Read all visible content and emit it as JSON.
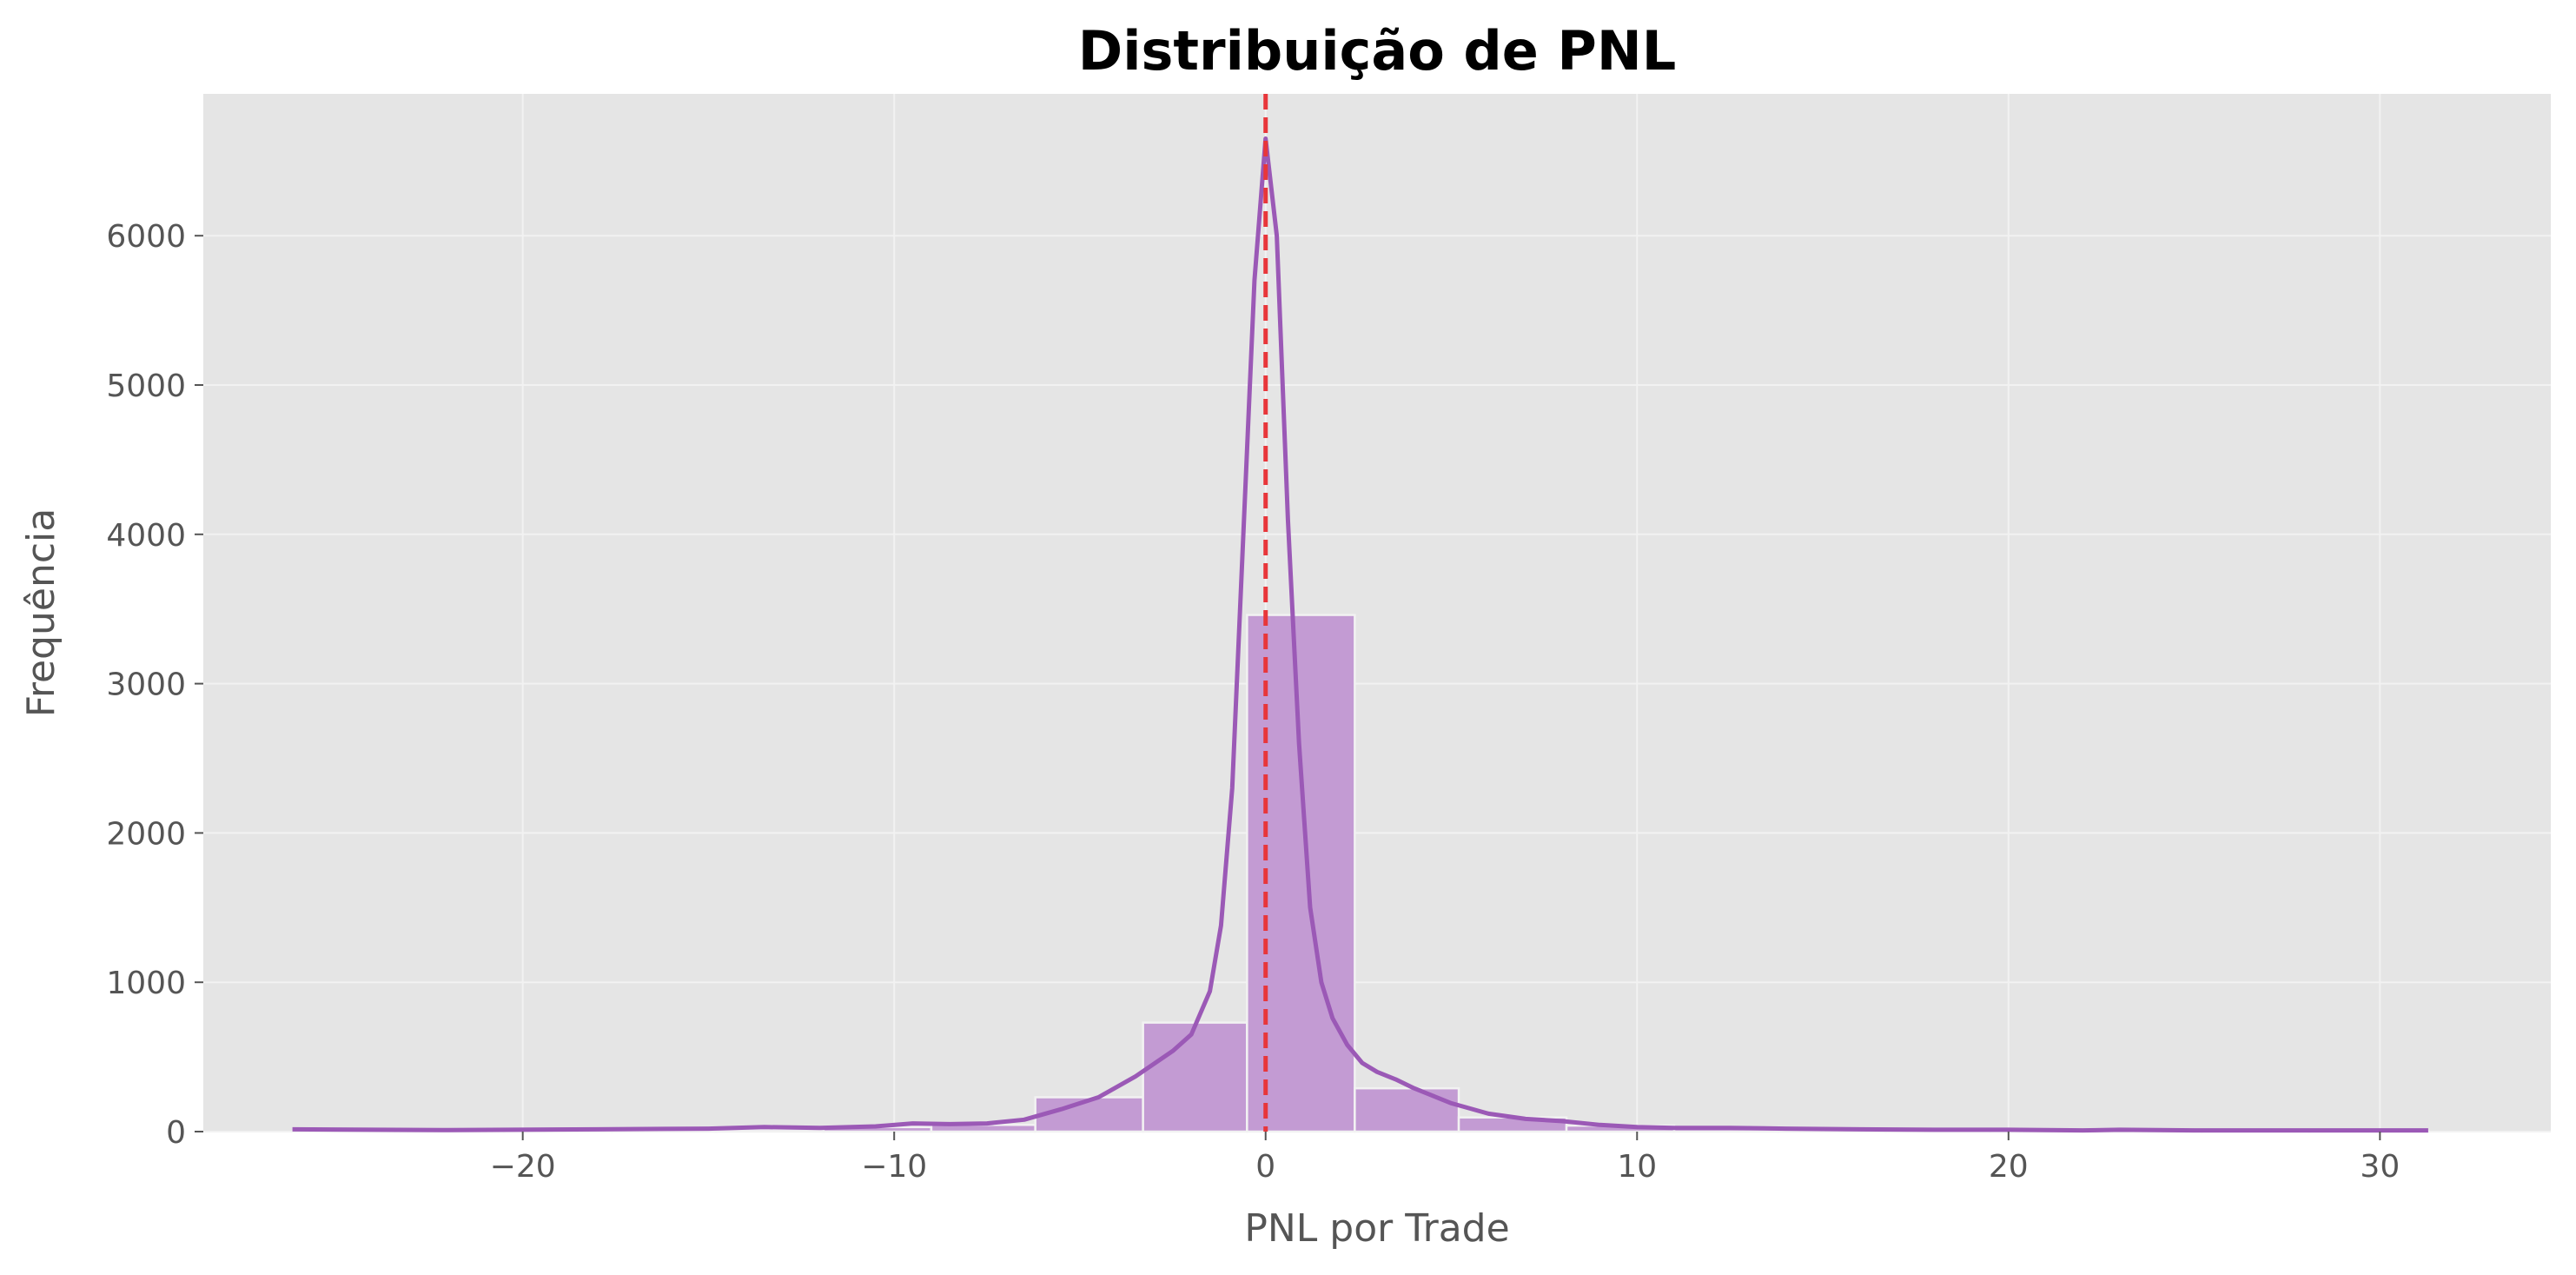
{
  "chart_data": {
    "type": "bar",
    "title": "Distribuição de PNL",
    "xlabel": "PNL por Trade",
    "ylabel": "Frequência",
    "xlim": [
      -28.6,
      34.6
    ],
    "ylim": [
      0,
      6950
    ],
    "x_ticks": [
      -20,
      -10,
      0,
      10,
      20,
      30
    ],
    "x_tick_labels": [
      "−20",
      "−10",
      "0",
      "10",
      "20",
      "30"
    ],
    "y_ticks": [
      0,
      1000,
      2000,
      3000,
      4000,
      5000,
      6000
    ],
    "y_tick_labels": [
      "0",
      "1000",
      "2000",
      "3000",
      "4000",
      "5000",
      "6000"
    ],
    "grid": true,
    "bins": [
      {
        "x0": -26.2,
        "x1": -23.3,
        "count": 2
      },
      {
        "x0": -23.3,
        "x1": -20.5,
        "count": 3
      },
      {
        "x0": -20.5,
        "x1": -17.6,
        "count": 5
      },
      {
        "x0": -17.6,
        "x1": -14.8,
        "count": 10
      },
      {
        "x0": -14.8,
        "x1": -11.9,
        "count": 15
      },
      {
        "x0": -11.9,
        "x1": -9.0,
        "count": 30
      },
      {
        "x0": -9.0,
        "x1": -6.2,
        "count": 45
      },
      {
        "x0": -6.2,
        "x1": -3.3,
        "count": 230
      },
      {
        "x0": -3.3,
        "x1": -0.5,
        "count": 730
      },
      {
        "x0": -0.5,
        "x1": 2.4,
        "count": 3460
      },
      {
        "x0": 2.4,
        "x1": 5.2,
        "count": 290
      },
      {
        "x0": 5.2,
        "x1": 8.1,
        "count": 95
      },
      {
        "x0": 8.1,
        "x1": 11.0,
        "count": 40
      },
      {
        "x0": 11.0,
        "x1": 13.8,
        "count": 20
      },
      {
        "x0": 13.8,
        "x1": 16.7,
        "count": 10
      },
      {
        "x0": 16.7,
        "x1": 19.5,
        "count": 6
      },
      {
        "x0": 19.5,
        "x1": 22.4,
        "count": 4
      },
      {
        "x0": 22.4,
        "x1": 25.2,
        "count": 3
      },
      {
        "x0": 25.2,
        "x1": 28.1,
        "count": 2
      },
      {
        "x0": 28.1,
        "x1": 31.3,
        "count": 2
      }
    ],
    "kde": {
      "x": [
        -26.2,
        -22,
        -18,
        -15,
        -13.5,
        -12,
        -10.5,
        -9.5,
        -8.5,
        -7.5,
        -6.5,
        -5.5,
        -4.5,
        -3.5,
        -2.5,
        -2.0,
        -1.5,
        -1.2,
        -0.9,
        -0.6,
        -0.3,
        0.0,
        0.3,
        0.6,
        0.9,
        1.2,
        1.5,
        1.8,
        2.2,
        2.6,
        3.0,
        3.5,
        4.0,
        5.0,
        6.0,
        7.0,
        8.0,
        9.0,
        10.0,
        11.0,
        12.5,
        14.0,
        16.0,
        18.0,
        20.0,
        22.0,
        23.0,
        25.0,
        28.0,
        31.3
      ],
      "y": [
        15,
        10,
        15,
        20,
        30,
        25,
        35,
        55,
        50,
        55,
        80,
        150,
        230,
        370,
        540,
        650,
        940,
        1380,
        2300,
        4000,
        5700,
        6650,
        6000,
        4100,
        2600,
        1500,
        1000,
        760,
        580,
        460,
        400,
        350,
        290,
        190,
        120,
        85,
        70,
        45,
        30,
        25,
        25,
        20,
        15,
        12,
        12,
        8,
        12,
        8,
        8,
        8
      ]
    },
    "vline_x": 0,
    "colors": {
      "background": "#E5E5E5",
      "grid": "#F2F2F2",
      "bar_fill": "#C39BD3",
      "bar_edge": "#F2F2F2",
      "kde_line": "#9B59B6",
      "vline": "#E8363A",
      "axis_text": "#555555",
      "tick_mark": "#555555"
    }
  }
}
